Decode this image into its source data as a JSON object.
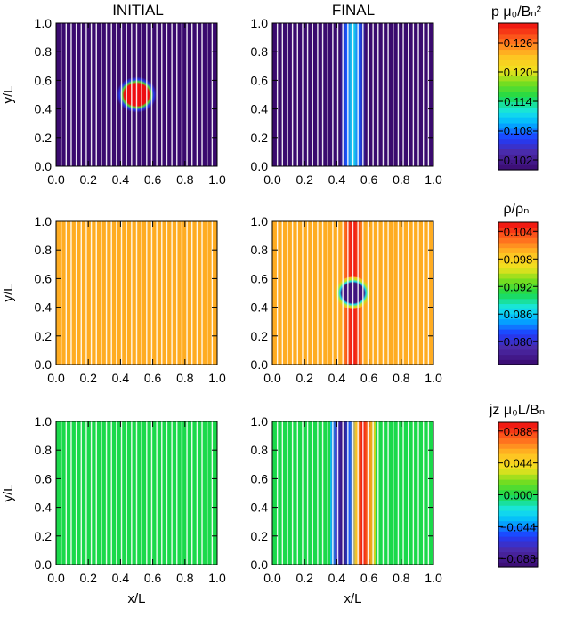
{
  "column_titles": [
    "INITIAL",
    "FINAL"
  ],
  "colorbars": [
    {
      "label": "p  μ₀/Bₙ²",
      "ticks": [
        "0.126",
        "0.120",
        "0.114",
        "0.108",
        "0.102"
      ],
      "range": [
        0.1,
        0.13
      ]
    },
    {
      "label": "ρ/ρₙ",
      "ticks": [
        "0.104",
        "0.098",
        "0.092",
        "0.086",
        "0.080"
      ],
      "range": [
        0.075,
        0.106
      ]
    },
    {
      "label": "jz  μ₀L/Bₙ",
      "ticks": [
        "0.088",
        "0.044",
        "0.000",
        "−0.044",
        "−0.088"
      ],
      "range": [
        -0.1,
        0.1
      ]
    }
  ],
  "chart_data": [
    {
      "type": "heatmap",
      "row": 0,
      "column": "INITIAL",
      "xlabel": "",
      "ylabel": "y/L",
      "xlim": [
        0,
        1
      ],
      "ylim": [
        0,
        1
      ],
      "xticks": [
        "0.0",
        "0.2",
        "0.4",
        "0.6",
        "0.8",
        "1.0"
      ],
      "yticks": [
        "0.0",
        "0.2",
        "0.4",
        "0.6",
        "0.8",
        "1.0"
      ],
      "background_value": 0.1,
      "vertical_field_lines": 32,
      "features": [
        {
          "kind": "circle",
          "center": [
            0.5,
            0.5
          ],
          "radius": 0.1,
          "peak_value": 0.13
        }
      ]
    },
    {
      "type": "heatmap",
      "row": 0,
      "column": "FINAL",
      "xlabel": "",
      "ylabel": "",
      "xlim": [
        0,
        1
      ],
      "ylim": [
        0,
        1
      ],
      "xticks": [
        "0.0",
        "0.2",
        "0.4",
        "0.6",
        "0.8",
        "1.0"
      ],
      "yticks": [
        "0.0",
        "0.2",
        "0.4",
        "0.6",
        "0.8",
        "1.0"
      ],
      "background_value": 0.1,
      "vertical_field_lines": 32,
      "features": [
        {
          "kind": "band",
          "x_range": [
            0.42,
            0.58
          ],
          "peak_value": 0.112
        }
      ]
    },
    {
      "type": "heatmap",
      "row": 1,
      "column": "INITIAL",
      "xlabel": "",
      "ylabel": "y/L",
      "xlim": [
        0,
        1
      ],
      "ylim": [
        0,
        1
      ],
      "xticks": [
        "0.0",
        "0.2",
        "0.4",
        "0.6",
        "0.8",
        "1.0"
      ],
      "yticks": [
        "0.0",
        "0.2",
        "0.4",
        "0.6",
        "0.8",
        "1.0"
      ],
      "background_value": 0.1,
      "vertical_field_lines": 32,
      "features": []
    },
    {
      "type": "heatmap",
      "row": 1,
      "column": "FINAL",
      "xlabel": "",
      "ylabel": "",
      "xlim": [
        0,
        1
      ],
      "ylim": [
        0,
        1
      ],
      "xticks": [
        "0.0",
        "0.2",
        "0.4",
        "0.6",
        "0.8",
        "1.0"
      ],
      "yticks": [
        "0.0",
        "0.2",
        "0.4",
        "0.6",
        "0.8",
        "1.0"
      ],
      "background_value": 0.1,
      "vertical_field_lines": 32,
      "features": [
        {
          "kind": "band",
          "x_range": [
            0.43,
            0.57
          ],
          "peak_value": 0.106
        },
        {
          "kind": "circle",
          "center": [
            0.5,
            0.5
          ],
          "radius": 0.09,
          "peak_value": 0.076
        }
      ]
    },
    {
      "type": "heatmap",
      "row": 2,
      "column": "INITIAL",
      "xlabel": "x/L",
      "ylabel": "y/L",
      "xlim": [
        0,
        1
      ],
      "ylim": [
        0,
        1
      ],
      "xticks": [
        "0.0",
        "0.2",
        "0.4",
        "0.6",
        "0.8",
        "1.0"
      ],
      "yticks": [
        "0.0",
        "0.2",
        "0.4",
        "0.6",
        "0.8",
        "1.0"
      ],
      "background_value": 0.0,
      "vertical_field_lines": 32,
      "features": []
    },
    {
      "type": "heatmap",
      "row": 2,
      "column": "FINAL",
      "xlabel": "x/L",
      "ylabel": "",
      "xlim": [
        0,
        1
      ],
      "ylim": [
        0,
        1
      ],
      "xticks": [
        "0.0",
        "0.2",
        "0.4",
        "0.6",
        "0.8",
        "1.0"
      ],
      "yticks": [
        "0.0",
        "0.2",
        "0.4",
        "0.6",
        "0.8",
        "1.0"
      ],
      "background_value": 0.0,
      "vertical_field_lines": 32,
      "features": [
        {
          "kind": "profile",
          "x": [
            0.36,
            0.4,
            0.44,
            0.48,
            0.52,
            0.56,
            0.6,
            0.64
          ],
          "values": [
            -0.03,
            -0.07,
            -0.1,
            -0.05,
            0.05,
            0.1,
            0.07,
            0.03
          ]
        }
      ]
    }
  ]
}
